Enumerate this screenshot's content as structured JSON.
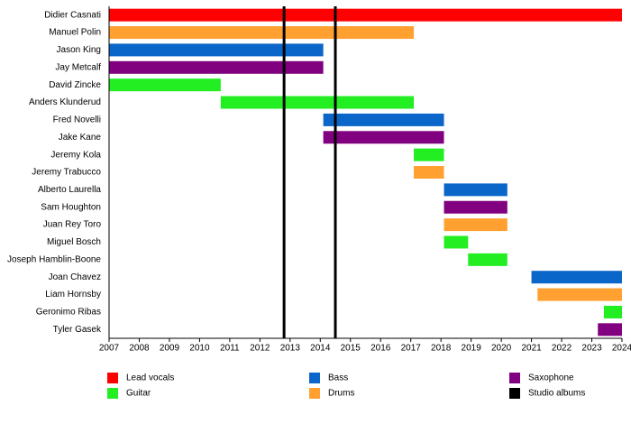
{
  "chart_data": {
    "type": "timeline",
    "categories": [
      "Didier Casnati",
      "Manuel Polin",
      "Jason King",
      "Jay Metcalf",
      "David Zincke",
      "Anders Klunderud",
      "Fred Novelli",
      "Jake Kane",
      "Jeremy Kola",
      "Jeremy Trabucco",
      "Alberto Laurella",
      "Sam Houghton",
      "Juan Rey Toro",
      "Miguel Bosch",
      "Joseph Hamblin-Boone",
      "Joan Chavez",
      "Liam Hornsby",
      "Geronimo Ribas",
      "Tyler Gasek"
    ],
    "series": [
      {
        "name": "Lead vocals",
        "color": "#ff0000",
        "values": [
          [
            2007,
            2024
          ],
          null,
          null,
          null,
          null,
          null,
          null,
          null,
          null,
          null,
          null,
          null,
          null,
          null,
          null,
          null,
          null,
          null,
          null
        ]
      },
      {
        "name": "Guitar",
        "color": "#22ee22",
        "values": [
          null,
          null,
          null,
          null,
          [
            2007,
            2010.7
          ],
          [
            2010.7,
            2017.1
          ],
          null,
          null,
          [
            2017.1,
            2018.1
          ],
          null,
          null,
          null,
          null,
          [
            2018.1,
            2018.9
          ],
          [
            2018.9,
            2020.2
          ],
          null,
          null,
          [
            2023.4,
            2024
          ],
          null
        ]
      },
      {
        "name": "Bass",
        "color": "#0a66c8",
        "values": [
          null,
          null,
          [
            2007,
            2014.1
          ],
          null,
          null,
          null,
          [
            2014.1,
            2018.1
          ],
          null,
          null,
          null,
          [
            2018.1,
            2020.2
          ],
          null,
          null,
          null,
          null,
          [
            2021.0,
            2024
          ],
          null,
          null,
          null
        ]
      },
      {
        "name": "Drums",
        "color": "#ffa030",
        "values": [
          null,
          [
            2007,
            2017.1
          ],
          null,
          null,
          null,
          null,
          null,
          null,
          null,
          [
            2017.1,
            2018.1
          ],
          null,
          null,
          [
            2018.1,
            2020.2
          ],
          null,
          null,
          null,
          [
            2021.2,
            2024
          ],
          null,
          null
        ]
      },
      {
        "name": "Saxophone",
        "color": "#800080",
        "values": [
          null,
          null,
          null,
          [
            2007,
            2014.1
          ],
          null,
          null,
          null,
          [
            2014.1,
            2018.1
          ],
          null,
          null,
          null,
          [
            2018.1,
            2020.2
          ],
          null,
          null,
          null,
          null,
          null,
          null,
          [
            2023.2,
            2024
          ]
        ]
      },
      {
        "name": "Studio albums",
        "color": "#000000",
        "type": "line",
        "x": [
          2012.8,
          2014.5
        ]
      }
    ],
    "xlim": [
      2007,
      2024
    ],
    "xticks": [
      2007,
      2008,
      2009,
      2010,
      2011,
      2012,
      2013,
      2014,
      2015,
      2016,
      2017,
      2018,
      2019,
      2020,
      2021,
      2022,
      2023,
      2024
    ]
  }
}
